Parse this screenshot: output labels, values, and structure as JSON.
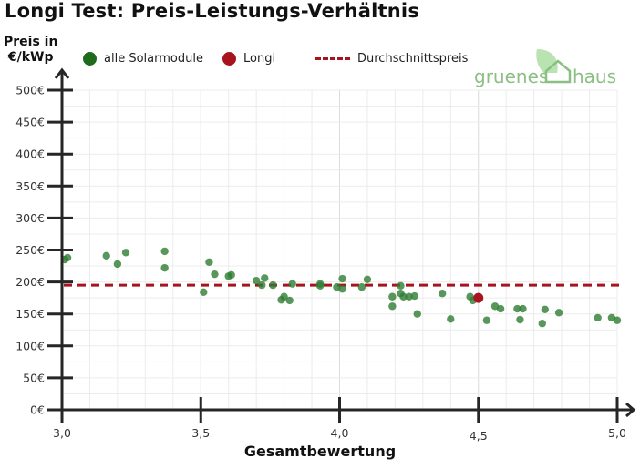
{
  "title": "Longi Test: Preis-Leistungs-Verhältnis",
  "logo": {
    "text_left": "gruenes",
    "text_right": "haus",
    "icon": "house-leaf-icon"
  },
  "legend": {
    "items": [
      {
        "label": "alle Solarmodule",
        "color": "#1e6b1e",
        "marker": "circle"
      },
      {
        "label": "Longi",
        "color": "#a8141e",
        "marker": "circle"
      },
      {
        "label": "Durchschnittspreis",
        "color": "#a8141e",
        "marker": "dashed-line"
      }
    ]
  },
  "axes": {
    "ylabel_line1": "Preis in",
    "ylabel_line2": "€/kWp",
    "xlabel": "Gesamtbewertung",
    "yticks": [
      "0€",
      "50€",
      "100€",
      "150€",
      "200€",
      "250€",
      "300€",
      "350€",
      "400€",
      "450€",
      "500€"
    ],
    "xticks": [
      "3,0",
      "3,5",
      "4,0",
      "4,5",
      "5,0"
    ]
  },
  "chart_data": {
    "type": "scatter",
    "title": "Longi Test: Preis-Leistungs-Verhältnis",
    "xlabel": "Gesamtbewertung",
    "ylabel": "Preis in €/kWp",
    "xlim": [
      3.0,
      5.0
    ],
    "ylim": [
      0,
      500
    ],
    "x_ticks": [
      3.0,
      3.5,
      4.0,
      4.5,
      5.0
    ],
    "y_ticks": [
      0,
      50,
      100,
      150,
      200,
      250,
      300,
      350,
      400,
      450,
      500
    ],
    "grid": true,
    "legend_position": "top",
    "series": [
      {
        "name": "alle Solarmodule",
        "color": "#2e7d32",
        "points": [
          [
            3.01,
            235
          ],
          [
            3.02,
            238
          ],
          [
            3.16,
            241
          ],
          [
            3.2,
            228
          ],
          [
            3.23,
            246
          ],
          [
            3.37,
            248
          ],
          [
            3.37,
            222
          ],
          [
            3.51,
            184
          ],
          [
            3.53,
            231
          ],
          [
            3.55,
            212
          ],
          [
            3.6,
            209
          ],
          [
            3.61,
            211
          ],
          [
            3.7,
            202
          ],
          [
            3.72,
            195
          ],
          [
            3.73,
            206
          ],
          [
            3.76,
            195
          ],
          [
            3.79,
            172
          ],
          [
            3.8,
            177
          ],
          [
            3.82,
            171
          ],
          [
            3.83,
            197
          ],
          [
            3.93,
            197
          ],
          [
            3.93,
            194
          ],
          [
            3.99,
            192
          ],
          [
            4.01,
            205
          ],
          [
            4.01,
            189
          ],
          [
            4.08,
            192
          ],
          [
            4.1,
            204
          ],
          [
            4.19,
            177
          ],
          [
            4.19,
            162
          ],
          [
            4.22,
            194
          ],
          [
            4.22,
            182
          ],
          [
            4.23,
            177
          ],
          [
            4.25,
            177
          ],
          [
            4.27,
            178
          ],
          [
            4.28,
            150
          ],
          [
            4.37,
            182
          ],
          [
            4.4,
            142
          ],
          [
            4.47,
            177
          ],
          [
            4.48,
            171
          ],
          [
            4.53,
            140
          ],
          [
            4.56,
            162
          ],
          [
            4.58,
            158
          ],
          [
            4.64,
            158
          ],
          [
            4.65,
            141
          ],
          [
            4.66,
            158
          ],
          [
            4.73,
            135
          ],
          [
            4.74,
            157
          ],
          [
            4.79,
            152
          ],
          [
            4.93,
            144
          ],
          [
            4.98,
            144
          ],
          [
            5.0,
            140
          ]
        ]
      },
      {
        "name": "Longi",
        "color": "#a8141e",
        "points": [
          [
            4.5,
            175
          ]
        ]
      }
    ],
    "reference_lines": [
      {
        "name": "Durchschnittspreis",
        "orientation": "horizontal",
        "value": 195,
        "style": "dashed",
        "color": "#a8141e"
      }
    ]
  }
}
